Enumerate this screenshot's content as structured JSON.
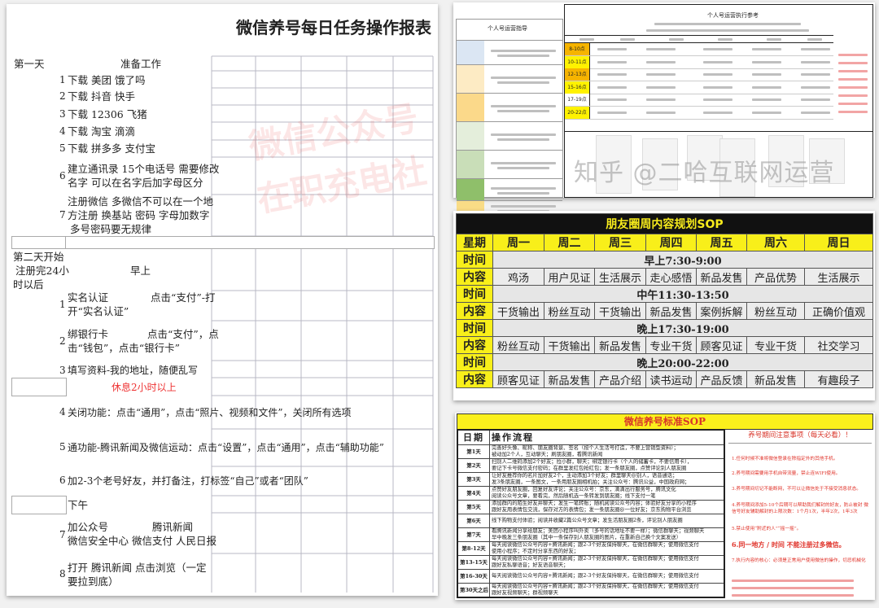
{
  "left_doc": {
    "title": "微信养号每日任务操作报表",
    "watermark": [
      "微信公众号",
      "在职充电社"
    ],
    "day1": {
      "label": "第一天",
      "heading": "准备工作",
      "items": [
        {
          "num": "1",
          "lines": [
            "下载  美团  饿了吗"
          ]
        },
        {
          "num": "2",
          "lines": [
            "下载  抖音   快手"
          ]
        },
        {
          "num": "3",
          "lines": [
            "下载  12306  飞猪"
          ]
        },
        {
          "num": "4",
          "lines": [
            "下载  淘宝   滴滴"
          ]
        },
        {
          "num": "5",
          "lines": [
            "下载  拼多多  支付宝"
          ]
        },
        {
          "num": "6",
          "lines": [
            "建立通讯录  15个电话号   需要修改",
            "名字  可以在名字后加字母区分"
          ]
        },
        {
          "num": "7",
          "lines": [
            "注册微信   多微信不可以在一个地",
            "方注册  换基站  密码 字母加数字",
            "多号密码要无规律"
          ]
        }
      ]
    },
    "day2": {
      "label_lines": [
        "第二天开始",
        "注册完24小",
        "时以后"
      ],
      "morning": "早上",
      "items": [
        {
          "num": "1",
          "lines": [
            "实名认证",
            "开“实名认证”"
          ],
          "right": "点击“支付”-打"
        },
        {
          "num": "2",
          "lines": [
            "绑银行卡",
            "击“钱包”，点击“银行卡”"
          ],
          "right": "点击“支付”，点"
        },
        {
          "num": "3",
          "lines": [
            "填写资料-我的地址，随便乱写"
          ]
        },
        {
          "num": "4",
          "lines": [
            "关闭功能：点击“通用”，点击“照片、视频和文件”，关闭所有选项"
          ]
        },
        {
          "num": "5",
          "lines": [
            "通功能-腾讯新闻及微信运动：点击“设置”，点击“通用”，点击“辅助功能”"
          ]
        },
        {
          "num": "6",
          "lines": [
            "加2-3个老号好友，并打备注，打标签“自己”或者“团队”"
          ]
        },
        {
          "num": "7",
          "lines": [
            "加公众号",
            "微信安全中心   微信支付   人民日报"
          ],
          "right": "腾讯新闻"
        },
        {
          "num": "8",
          "lines": [
            "打开   腾讯新闻   点击浏览（一定",
            "要拉到底）"
          ]
        }
      ],
      "rest_note": "休息2小时以上",
      "afternoon": "下午"
    }
  },
  "ops_reference": {
    "left_title": "个人号运营指导",
    "right_title": "个人号运营执行参考",
    "left_row_colors": [
      "#dbe6f3",
      "#fdebc4",
      "#fbd98a",
      "#e4eedb",
      "#c9deb8",
      "#8fbf6a",
      "#f9dc86"
    ],
    "time_slots": [
      {
        "label": "8-10点",
        "color": "#f6b400"
      },
      {
        "label": "10-11点",
        "color": "#fff200"
      },
      {
        "label": "12-13点",
        "color": "#f6b400"
      },
      {
        "label": "15-16点",
        "color": "#fff200"
      },
      {
        "label": "17-19点",
        "color": "#ffffff"
      },
      {
        "label": "20-22点",
        "color": "#fff200"
      }
    ]
  },
  "weekly_sop": {
    "title": "朋友圈周内容规划SOP",
    "header_label": "星期",
    "days": [
      "周一",
      "周二",
      "周三",
      "周四",
      "周五",
      "周六",
      "周日"
    ],
    "time_label": "时间",
    "content_label": "内容",
    "slots": [
      {
        "time": "早上7:30-9:00",
        "contents": [
          "鸡汤",
          "用户见证",
          "生活展示",
          "走心感悟",
          "新品发售",
          "产品优势",
          "生活展示"
        ]
      },
      {
        "time": "中午11:30-13:50",
        "contents": [
          "干货输出",
          "粉丝互动",
          "干货输出",
          "新品发售",
          "案例拆解",
          "粉丝互动",
          "正确价值观"
        ]
      },
      {
        "time": "晚上17:30-19:00",
        "contents": [
          "粉丝互动",
          "干货输出",
          "新品发售",
          "专业干货",
          "顾客见证",
          "专业干货",
          "社交学习"
        ]
      },
      {
        "time": "晚上20:00-22:00",
        "contents": [
          "顾客见证",
          "新品发售",
          "产品介绍",
          "读书运动",
          "产品反馈",
          "新品发售",
          "有趣段子"
        ]
      }
    ],
    "colors": {
      "title_bg": "#111111",
      "yellow": "#f8ef1a"
    }
  },
  "standard_sop": {
    "title": "微信养号标准SOP",
    "col_date": "日期",
    "col_flow": "操作流程",
    "rows": [
      {
        "day": "第1天",
        "lines": [
          "完善好头像、昵称、朋友圈背景、签名（按个人生活号打造，不要上营销型资料）；",
          "被动加2个人，互动聊天；刷朋友圈，看腾讯新闻"
        ]
      },
      {
        "day": "第2天",
        "lines": [
          "扫别人二维码添加2个好友；拉小群，聊天；绑定银行卡（个人的储蓄卡，不要信用卡），",
          "要记下卡号微信支付密码；在群里发红包抢红包；发一条朋友圈，点赞评论别人朋友圈"
        ]
      },
      {
        "day": "第3天",
        "lines": [
          "让好友推荐你的名片加好友2个，主动添加3个好友；群里聊天@别人，语音通话；",
          "发3条朋友圈，一条图文，一条用朋友圈相机拍；关注公众号：腾讯公益，中国政府网；"
        ]
      },
      {
        "day": "第4天",
        "lines": [
          "点赞好友朋友圈，回复好友评论；关注公众号：京东，滴滴出行服务号，腾讯文化",
          "阅读公众号文章，要看完，然后随机选一条转发到朋友圈；线下支付一笔"
        ]
      },
      {
        "day": "第5天",
        "lines": [
          "添加群内的陌生好友并聊天；发生一笔转账；随机阅读公众号内容；体验好友分享的小程序",
          "跟好友用表情包交流，保存对方的表情包；发一条朋友圈@一位好友；京东购物平台浏览"
        ]
      },
      {
        "day": "第6天",
        "lines": [
          "线下购物支付体验；阅读并收藏2篇公众号文章；发生活朋友圈2条，评论别人朋友圈"
        ]
      },
      {
        "day": "第7天",
        "lines": [
          "看腾讯新闻分享给朋友；美团小程序叫外卖（多号的话地址不要一样）；微信群聊天；视频聊天",
          "早中晚发三条朋友圈（其中一条保存别人朋友圈的图片，在重新自己换个文案发送）"
        ]
      },
      {
        "day": "第8-12天",
        "lines": [
          "每天阅读微信公众号内容+腾讯新闻；跟2-3个好友保持聊天，在微信群聊天；使用微信支付",
          "使用小程序；不定时分享东西的好友；"
        ]
      },
      {
        "day": "第13-15天",
        "lines": [
          "每天阅读微信公众号内容+腾讯新闻；跟2-3个好友保持聊天，在微信群聊天；使用微信支付",
          "跟好友私聊语音；好友语音聊天；"
        ]
      },
      {
        "day": "第16-30天",
        "lines": [
          "每天阅读微信公众号内容+腾讯新闻；跟2-3个好友保持聊天，在微信群聊天；使用微信支付"
        ]
      },
      {
        "day": "第30天之后",
        "lines": [
          "每天阅读微信公众号内容+腾讯新闻；跟2-3个好友保持聊天，在微信群聊天；使用微信支付",
          "跟好友视频聊天；群视频聊天"
        ]
      }
    ],
    "notes_title": "养号期间注意事项（每天必看）！",
    "notes": [
      "1.任何时候不准将微信登录在除指定外的其他手机。",
      "2.养号期间需要用手机自带流量，禁止连WIFI使用。",
      "3.养号期间切记不能断网，不可以让微信处于不接受消息状态。",
      "4.养号期间添加5-10个后期可以帮助我们解封的好友，防止被封 微信号好友辅助解封的上限次数：1个月1次，半年2次，1年3次",
      "5.禁止使用“附近的人”“摇一摇”。",
      "6.同一地方 / 时间 不能注册过多微信。",
      "7.执行内容的核心：必须是正常用户使用微信的操作，切忌机械化"
    ],
    "accent_color": "#e0332a"
  },
  "watermark_zhihu": "知乎 @二哈互联网运营"
}
